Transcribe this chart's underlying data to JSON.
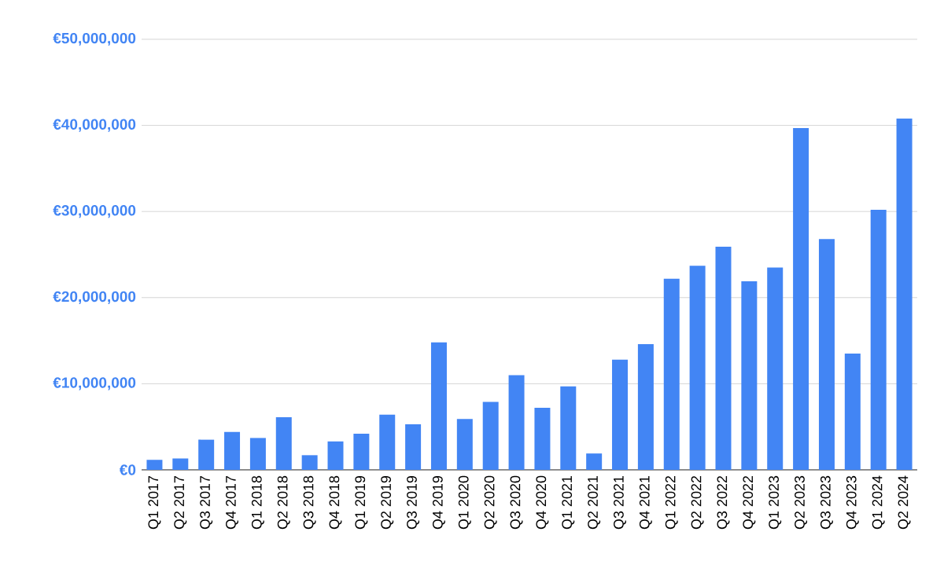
{
  "chart_data": {
    "type": "bar",
    "color": "#4285f4",
    "categories": [
      "Q1 2017",
      "Q2 2017",
      "Q3 2017",
      "Q4 2017",
      "Q1 2018",
      "Q2 2018",
      "Q3 2018",
      "Q4 2018",
      "Q1 2019",
      "Q2 2019",
      "Q3 2019",
      "Q4 2019",
      "Q1 2020",
      "Q2 2020",
      "Q3 2020",
      "Q4 2020",
      "Q1 2021",
      "Q2 2021",
      "Q3 2021",
      "Q4 2021",
      "Q1 2022",
      "Q2 2022",
      "Q3 2022",
      "Q4 2022",
      "Q1 2023",
      "Q2 2023",
      "Q3 2023",
      "Q4 2023",
      "Q1 2024",
      "Q2 2024"
    ],
    "values": [
      1150000,
      1330000,
      3500000,
      4400000,
      3700000,
      6100000,
      1700000,
      3300000,
      4200000,
      6400000,
      5300000,
      14800000,
      5900000,
      7900000,
      11000000,
      7200000,
      9700000,
      1900000,
      12800000,
      14600000,
      22200000,
      23700000,
      25900000,
      21900000,
      23500000,
      39700000,
      26800000,
      13500000,
      30200000,
      40800000
    ],
    "ylim": [
      0,
      50000000
    ],
    "yticks": [
      {
        "value": 0,
        "label": "€0"
      },
      {
        "value": 10000000,
        "label": "€10,000,000"
      },
      {
        "value": 20000000,
        "label": "€20,000,000"
      },
      {
        "value": 30000000,
        "label": "€30,000,000"
      },
      {
        "value": 40000000,
        "label": "€40,000,000"
      },
      {
        "value": 50000000,
        "label": "€50,000,000"
      }
    ],
    "grid": "y"
  }
}
